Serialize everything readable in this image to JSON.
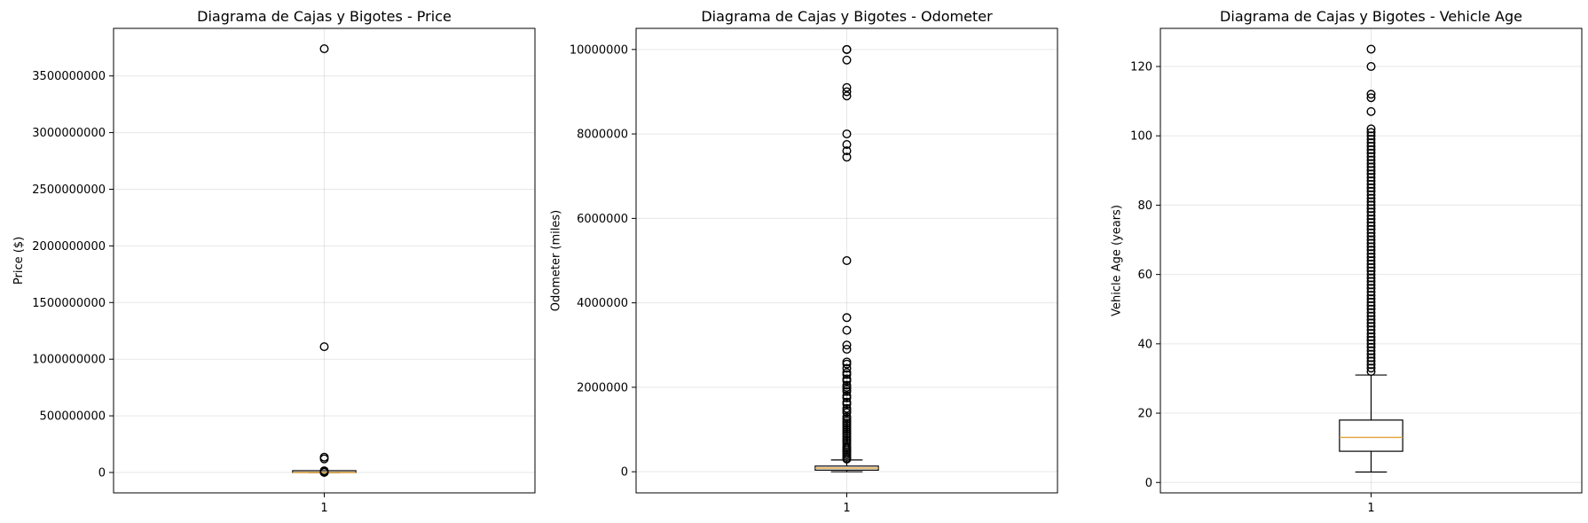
{
  "chart_data": [
    {
      "type": "boxplot",
      "title": "Diagrama de Cajas y Bigotes - Price",
      "xlabel": "",
      "ylabel": "Price ($)",
      "categories": [
        "1"
      ],
      "ylim": [
        -180000000,
        3920000000
      ],
      "yticks": [
        0,
        500000000,
        1000000000,
        1500000000,
        2000000000,
        2500000000,
        3000000000,
        3500000000
      ],
      "ytick_labels": [
        "0",
        "500000000",
        "1000000000",
        "1500000000",
        "2000000000",
        "2500000000",
        "3000000000",
        "3500000000"
      ],
      "grid": true,
      "box": {
        "whisker_low": 0,
        "q1": 6000,
        "median": 14000,
        "q3": 27000,
        "whisker_high": 58000
      },
      "outliers": [
        3740000000,
        1110000000,
        135000000,
        120000000,
        15000000,
        10000000,
        5000000,
        2000000,
        1000000
      ]
    },
    {
      "type": "boxplot",
      "title": "Diagrama de Cajas y Bigotes - Odometer",
      "xlabel": "",
      "ylabel": "Odometer (miles)",
      "categories": [
        "1"
      ],
      "ylim": [
        -500000,
        10500000
      ],
      "yticks": [
        0,
        2000000,
        4000000,
        6000000,
        8000000,
        10000000
      ],
      "ytick_labels": [
        "0",
        "2000000",
        "4000000",
        "6000000",
        "8000000",
        "10000000"
      ],
      "grid": true,
      "box": {
        "whisker_low": 0,
        "q1": 38000,
        "median": 86000,
        "q3": 134000,
        "whisker_high": 280000
      },
      "outliers": [
        10000000,
        9999999,
        9750000,
        9100000,
        9000000,
        8900000,
        8000000,
        7750000,
        7600000,
        7450000,
        5000000,
        3650000,
        3350000,
        3000000,
        2900000,
        2600000,
        2550000,
        2450000,
        2350000,
        2300000,
        2200000,
        2150000,
        2050000,
        2000000,
        1950000,
        1900000,
        1800000,
        1750000,
        1650000,
        1600000,
        1500000,
        1450000,
        1400000,
        1300000,
        1250000,
        1200000,
        1150000,
        1100000,
        1050000,
        1000000,
        950000,
        900000,
        850000,
        800000,
        750000,
        700000,
        650000,
        600000,
        560000,
        520000,
        480000,
        440000,
        400000,
        360000,
        320000,
        300000
      ]
    },
    {
      "type": "boxplot",
      "title": "Diagrama de Cajas y Bigotes - Vehicle Age",
      "xlabel": "",
      "ylabel": "Vehicle Age (years)",
      "categories": [
        "1"
      ],
      "ylim": [
        -3,
        131
      ],
      "yticks": [
        0,
        20,
        40,
        60,
        80,
        100,
        120
      ],
      "ytick_labels": [
        "0",
        "20",
        "40",
        "60",
        "80",
        "100",
        "120"
      ],
      "grid": true,
      "box": {
        "whisker_low": 3,
        "q1": 9,
        "median": 13,
        "q3": 18,
        "whisker_high": 31
      },
      "outliers": [
        125,
        120,
        112,
        111,
        107,
        102,
        101,
        100,
        99,
        98,
        97,
        96,
        95,
        94,
        93,
        92,
        91,
        90,
        89,
        88,
        87,
        86,
        85,
        84,
        83,
        82,
        81,
        80,
        79,
        78,
        77,
        76,
        75,
        74,
        73,
        72,
        71,
        70,
        69,
        68,
        67,
        66,
        65,
        64,
        63,
        62,
        61,
        60,
        59,
        58,
        57,
        56,
        55,
        54,
        53,
        52,
        51,
        50,
        49,
        48,
        47,
        46,
        45,
        44,
        43,
        42,
        41,
        40,
        39,
        38,
        37,
        36,
        35,
        34,
        33,
        32
      ]
    }
  ],
  "colors": {
    "median": "#e0a33c",
    "box_fill": "#ffffff",
    "flier": "#000000",
    "grid": "#b0b0b0"
  }
}
